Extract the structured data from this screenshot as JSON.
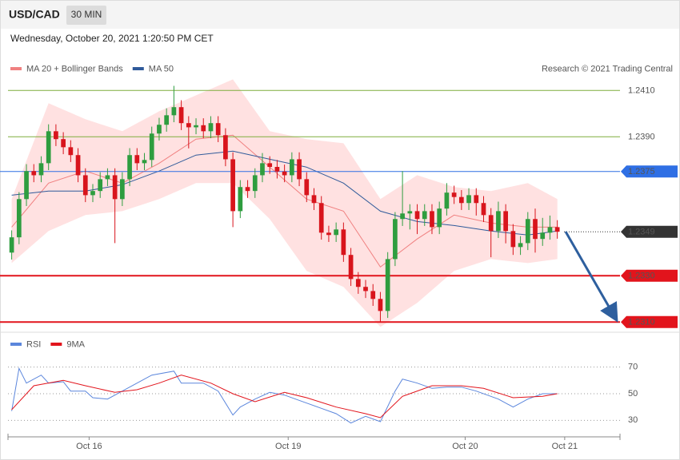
{
  "header": {
    "symbol": "USD/CAD",
    "timeframe": "30 MIN",
    "timestamp": "Wednesday, October 20, 2021 1:20:50 PM CET"
  },
  "chart_data": [
    {
      "type": "candlestick",
      "source": "Research © 2021 Trading Central",
      "up_color": "#2e9d3f",
      "down_color": "#d8141c",
      "band_color": "#ffe1e1",
      "xlim": [
        -0.5,
        82.5
      ],
      "ylim": [
        1.2307,
        1.2417
      ],
      "open": [
        1.234,
        1.23466,
        1.23631,
        1.23752,
        1.23734,
        1.23786,
        1.23924,
        1.2389,
        1.23855,
        1.23821,
        1.23734,
        1.23648,
        1.23666,
        1.23717,
        1.23734,
        1.23631,
        1.23717,
        1.23821,
        1.23786,
        1.238,
        1.23914,
        1.23952,
        1.23993,
        1.24028,
        1.23959,
        1.23941,
        1.2395,
        1.23924,
        1.23959,
        1.23907,
        1.23803,
        1.23579,
        1.23683,
        1.23666,
        1.23734,
        1.23786,
        1.2377,
        1.2375,
        1.23734,
        1.23803,
        1.23717,
        1.23648,
        1.23614,
        1.23486,
        1.23476,
        1.235,
        1.2339,
        1.23286,
        1.23252,
        1.23234,
        1.232,
        1.23148,
        1.23372,
        1.23545,
        1.23569,
        1.23579,
        1.23545,
        1.23579,
        1.2351,
        1.2359,
        1.23659,
        1.2364,
        1.23614,
        1.23648,
        1.23614,
        1.23562,
        1.23493,
        1.23579,
        1.23493,
        1.23424,
        1.23441,
        1.23545,
        1.23459,
        1.23486,
        1.2351
      ],
      "high": [
        1.23496,
        1.23661,
        1.23782,
        1.23782,
        1.23816,
        1.23954,
        1.23954,
        1.2392,
        1.23885,
        1.23851,
        1.23764,
        1.23696,
        1.23747,
        1.23764,
        1.23764,
        1.23747,
        1.23851,
        1.23851,
        1.2383,
        1.23944,
        1.23982,
        1.24023,
        1.2412,
        1.24058,
        1.23989,
        1.2398,
        1.2398,
        1.23989,
        1.23989,
        1.23937,
        1.23833,
        1.23713,
        1.23713,
        1.23764,
        1.2383,
        1.23816,
        1.238,
        1.2378,
        1.23833,
        1.23833,
        1.23747,
        1.23678,
        1.23644,
        1.23516,
        1.2353,
        1.2353,
        1.2342,
        1.23316,
        1.23282,
        1.23264,
        1.2323,
        1.23402,
        1.23575,
        1.23752,
        1.23609,
        1.23609,
        1.23609,
        1.23609,
        1.2362,
        1.237,
        1.23689,
        1.2367,
        1.23678,
        1.23678,
        1.23644,
        1.23592,
        1.2362,
        1.23609,
        1.23523,
        1.23471,
        1.23575,
        1.2359,
        1.2355,
        1.2356,
        1.2354
      ],
      "low": [
        1.2337,
        1.23436,
        1.23601,
        1.23704,
        1.23704,
        1.23756,
        1.2386,
        1.23825,
        1.23791,
        1.23704,
        1.23618,
        1.23618,
        1.23636,
        1.23687,
        1.23441,
        1.23601,
        1.23687,
        1.23756,
        1.23756,
        1.2377,
        1.23884,
        1.23922,
        1.23963,
        1.23929,
        1.2385,
        1.23911,
        1.23894,
        1.23894,
        1.23877,
        1.23773,
        1.2351,
        1.23549,
        1.23636,
        1.23636,
        1.23704,
        1.2374,
        1.2372,
        1.23704,
        1.23704,
        1.23687,
        1.23618,
        1.23584,
        1.23456,
        1.23446,
        1.23446,
        1.2336,
        1.23256,
        1.23222,
        1.23204,
        1.2317,
        1.231,
        1.23118,
        1.23342,
        1.23515,
        1.235,
        1.2348,
        1.23515,
        1.2348,
        1.2348,
        1.2356,
        1.2361,
        1.23584,
        1.23584,
        1.2356,
        1.23532,
        1.2338,
        1.23463,
        1.2344,
        1.2339,
        1.2339,
        1.23411,
        1.234,
        1.23429,
        1.23456,
        1.2346
      ],
      "close": [
        1.23466,
        1.23631,
        1.23752,
        1.23734,
        1.23786,
        1.23924,
        1.2389,
        1.23855,
        1.23821,
        1.23734,
        1.23648,
        1.23666,
        1.23717,
        1.23734,
        1.23631,
        1.23717,
        1.23821,
        1.23786,
        1.238,
        1.23914,
        1.23952,
        1.23993,
        1.24028,
        1.23959,
        1.23941,
        1.2395,
        1.23924,
        1.23959,
        1.23907,
        1.23803,
        1.23579,
        1.23683,
        1.23666,
        1.23734,
        1.23786,
        1.2377,
        1.2375,
        1.23734,
        1.23803,
        1.23717,
        1.23648,
        1.23614,
        1.23486,
        1.23476,
        1.235,
        1.2339,
        1.23286,
        1.23252,
        1.23234,
        1.232,
        1.23148,
        1.23372,
        1.23545,
        1.23569,
        1.23579,
        1.23545,
        1.23579,
        1.2351,
        1.2359,
        1.23659,
        1.2364,
        1.23614,
        1.23648,
        1.23614,
        1.23562,
        1.23493,
        1.23579,
        1.23493,
        1.23424,
        1.23441,
        1.23545,
        1.23459,
        1.23486,
        1.2351,
        1.2349
      ],
      "series": [
        {
          "name": "MA 20 + Bollinger Bands",
          "color": "#f08080",
          "x": [
            0,
            5,
            10,
            15,
            20,
            25,
            30,
            35,
            40,
            45,
            50,
            55,
            60,
            65,
            70,
            74
          ],
          "values": [
            1.2351,
            1.237,
            1.23752,
            1.237,
            1.23786,
            1.2389,
            1.23907,
            1.23769,
            1.23631,
            1.23579,
            1.23338,
            1.23459,
            1.23562,
            1.23528,
            1.2351,
            1.2351
          ],
          "upper": [
            1.23631,
            1.24045,
            1.23976,
            1.23924,
            1.2401,
            1.24079,
            1.24148,
            1.23924,
            1.2389,
            1.23872,
            1.23631,
            1.23734,
            1.23683,
            1.23666,
            1.237,
            1.23631
          ],
          "lower": [
            1.23355,
            1.23493,
            1.23562,
            1.23579,
            1.23631,
            1.237,
            1.237,
            1.23545,
            1.23321,
            1.23252,
            1.23079,
            1.23183,
            1.23321,
            1.23372,
            1.23355,
            1.23372
          ]
        },
        {
          "name": "MA 50",
          "color": "#2f5a9a",
          "x": [
            0,
            5,
            10,
            15,
            20,
            25,
            30,
            35,
            40,
            45,
            50,
            55,
            60,
            65,
            70,
            74
          ],
          "values": [
            1.23648,
            1.23666,
            1.23666,
            1.23693,
            1.23752,
            1.23821,
            1.23838,
            1.23803,
            1.23769,
            1.237,
            1.23579,
            1.23534,
            1.23517,
            1.23493,
            1.23476,
            1.23493
          ]
        }
      ],
      "levels": [
        {
          "value": 1.241,
          "label": "1.2410",
          "color": "#7fae3c",
          "line": "thin",
          "tag": false
        },
        {
          "value": 1.239,
          "label": "1.2390",
          "color": "#7fae3c",
          "line": "thin",
          "tag": false
        },
        {
          "value": 1.2375,
          "label": "1.2375",
          "color": "#2f6fe4",
          "line": "thin",
          "tag": true
        },
        {
          "value": 1.2349,
          "label": "1.2349",
          "color": "#333333",
          "line": "dotted",
          "tag": true
        },
        {
          "value": 1.233,
          "label": "1.2330",
          "color": "#e2141c",
          "line": "thick",
          "tag": true
        },
        {
          "value": 1.231,
          "label": "1.2310",
          "color": "#e2141c",
          "line": "thick",
          "tag": true
        }
      ]
    },
    {
      "type": "line",
      "xlim": [
        -0.5,
        82.5
      ],
      "ylim": [
        20,
        80
      ],
      "yticks": [
        30,
        50,
        70
      ],
      "xticks": [
        {
          "value": 10.5,
          "label": "Oct 16"
        },
        {
          "value": 37.5,
          "label": "Oct 19"
        },
        {
          "value": 61.5,
          "label": "Oct 20"
        },
        {
          "value": 75,
          "label": "Oct 21"
        }
      ],
      "series": [
        {
          "name": "RSI",
          "color": "#5b86dc",
          "x": [
            0,
            1,
            2,
            4,
            5,
            7,
            8,
            10,
            11,
            13,
            15,
            17,
            19,
            22,
            23,
            26,
            28,
            30,
            31,
            33,
            35,
            37,
            40,
            42,
            44,
            46,
            48,
            50,
            52,
            53,
            55,
            57,
            59,
            61,
            63,
            66,
            68,
            70,
            72,
            74
          ],
          "values": [
            37,
            69,
            58,
            64,
            58,
            59,
            52,
            52,
            47,
            46,
            52,
            58,
            64,
            67,
            58,
            58,
            52,
            34,
            40,
            46,
            51,
            49,
            43,
            39,
            35,
            28,
            33,
            29,
            52,
            61,
            58,
            54,
            55,
            55,
            52,
            46,
            40,
            46,
            50,
            50
          ]
        },
        {
          "name": "9MA",
          "color": "#e2141c",
          "x": [
            0,
            3,
            7,
            10,
            14,
            17,
            20,
            23,
            27,
            30,
            33,
            37,
            40,
            44,
            48,
            50,
            53,
            57,
            61,
            64,
            68,
            72,
            74
          ],
          "values": [
            38,
            56,
            60,
            56,
            51,
            53,
            58,
            64,
            58,
            50,
            44,
            51,
            47,
            40,
            35,
            32,
            48,
            56,
            56,
            54,
            47,
            48,
            50
          ]
        }
      ]
    }
  ]
}
